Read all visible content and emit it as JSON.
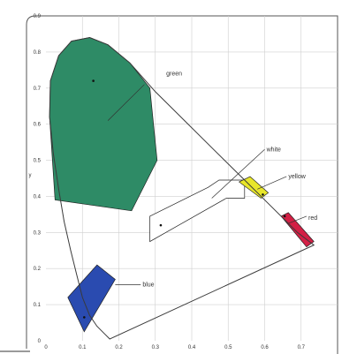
{
  "chart_data": {
    "type": "scatter",
    "title": "",
    "xlabel": "",
    "ylabel": "y",
    "xlim": [
      0,
      0.8
    ],
    "ylim": [
      0,
      0.9
    ],
    "x_ticks": [
      "0",
      "0.1",
      "0.2",
      "0.3",
      "0.4",
      "0.5",
      "0.6",
      "0.7"
    ],
    "y_ticks": [
      "0",
      "0.1",
      "0.2",
      "0.3",
      "0.4",
      "0.5",
      "0.6",
      "0.7",
      "0.8",
      "0.9"
    ],
    "grid": true,
    "spectral_locus": [
      [
        0.175,
        0.005
      ],
      [
        0.16,
        0.02
      ],
      [
        0.14,
        0.04
      ],
      [
        0.12,
        0.07
      ],
      [
        0.1,
        0.12
      ],
      [
        0.085,
        0.18
      ],
      [
        0.068,
        0.25
      ],
      [
        0.05,
        0.33
      ],
      [
        0.035,
        0.42
      ],
      [
        0.02,
        0.52
      ],
      [
        0.01,
        0.62
      ],
      [
        0.012,
        0.72
      ],
      [
        0.035,
        0.79
      ],
      [
        0.07,
        0.83
      ],
      [
        0.12,
        0.84
      ],
      [
        0.17,
        0.82
      ],
      [
        0.23,
        0.77
      ],
      [
        0.3,
        0.69
      ],
      [
        0.38,
        0.61
      ],
      [
        0.46,
        0.53
      ],
      [
        0.54,
        0.45
      ],
      [
        0.62,
        0.37
      ],
      [
        0.69,
        0.3
      ],
      [
        0.735,
        0.265
      ]
    ],
    "regions": [
      {
        "name": "green",
        "color": "#2e8b66",
        "polygon": [
          [
            0.01,
            0.62
          ],
          [
            0.012,
            0.72
          ],
          [
            0.035,
            0.79
          ],
          [
            0.07,
            0.83
          ],
          [
            0.12,
            0.84
          ],
          [
            0.17,
            0.82
          ],
          [
            0.23,
            0.77
          ],
          [
            0.285,
            0.7
          ],
          [
            0.305,
            0.5
          ],
          [
            0.235,
            0.36
          ],
          [
            0.025,
            0.39
          ]
        ],
        "point": [
          0.13,
          0.72
        ],
        "label_at": [
          0.33,
          0.74
        ],
        "leader": [
          [
            0.27,
            0.71
          ],
          [
            0.17,
            0.61
          ]
        ]
      },
      {
        "name": "blue",
        "color": "#2a4bb0",
        "polygon": [
          [
            0.06,
            0.12
          ],
          [
            0.14,
            0.21
          ],
          [
            0.19,
            0.17
          ],
          [
            0.105,
            0.025
          ]
        ],
        "point": [
          0.105,
          0.065
        ],
        "label_at": [
          0.265,
          0.155
        ],
        "leader": [
          [
            0.26,
            0.155
          ],
          [
            0.19,
            0.155
          ]
        ]
      },
      {
        "name": "white",
        "color": "#ffffff",
        "polygon": [
          [
            0.285,
            0.345
          ],
          [
            0.445,
            0.425
          ],
          [
            0.475,
            0.445
          ],
          [
            0.545,
            0.445
          ],
          [
            0.545,
            0.395
          ],
          [
            0.495,
            0.395
          ],
          [
            0.285,
            0.275
          ]
        ],
        "point": [
          0.315,
          0.32
        ],
        "label_at": [
          0.605,
          0.53
        ],
        "leader": [
          [
            0.6,
            0.53
          ],
          [
            0.455,
            0.395
          ]
        ]
      },
      {
        "name": "yellow",
        "color": "#e8e62a",
        "polygon": [
          [
            0.53,
            0.44
          ],
          [
            0.56,
            0.455
          ],
          [
            0.61,
            0.41
          ],
          [
            0.59,
            0.395
          ]
        ],
        "point": [
          0.595,
          0.405
        ],
        "label_at": [
          0.665,
          0.455
        ],
        "leader": [
          [
            0.66,
            0.455
          ],
          [
            0.58,
            0.42
          ]
        ]
      },
      {
        "name": "red",
        "color": "#d32045",
        "polygon": [
          [
            0.645,
            0.345
          ],
          [
            0.665,
            0.355
          ],
          [
            0.735,
            0.275
          ],
          [
            0.715,
            0.26
          ]
        ],
        "point": [
          0.655,
          0.345
        ],
        "label_at": [
          0.72,
          0.34
        ],
        "leader": [
          [
            0.715,
            0.345
          ],
          [
            0.665,
            0.325
          ]
        ]
      }
    ]
  },
  "colors": {
    "locus_line": "#3a3a3a",
    "grid_line": "#cfcfcf",
    "frame": "#555555",
    "region_border": "#222222"
  }
}
